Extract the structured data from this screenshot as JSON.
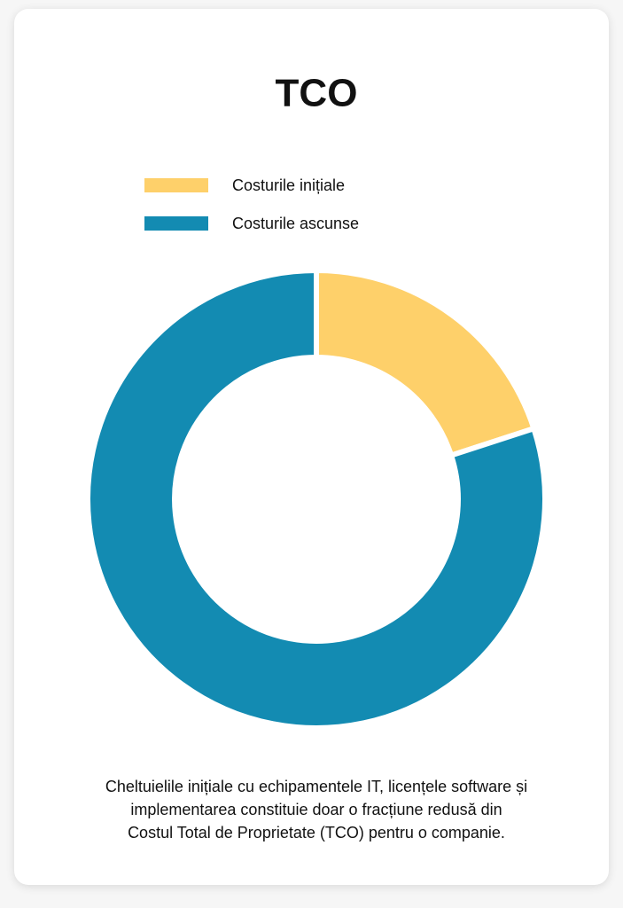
{
  "chart_data": {
    "type": "pie",
    "title": "TCO",
    "categories": [
      "Costurile inițiale",
      "Costurile ascunse"
    ],
    "values": [
      20,
      80
    ],
    "colors": [
      "#fed06a",
      "#138bb2"
    ],
    "inner_radius_ratio": 0.62,
    "description": [
      "Cheltuielile inițiale cu echipamentele IT, licențele software și",
      "implementarea constituie doar o fracțiune redusă din",
      "Costul Total de Proprietate (TCO) pentru o companie."
    ]
  }
}
